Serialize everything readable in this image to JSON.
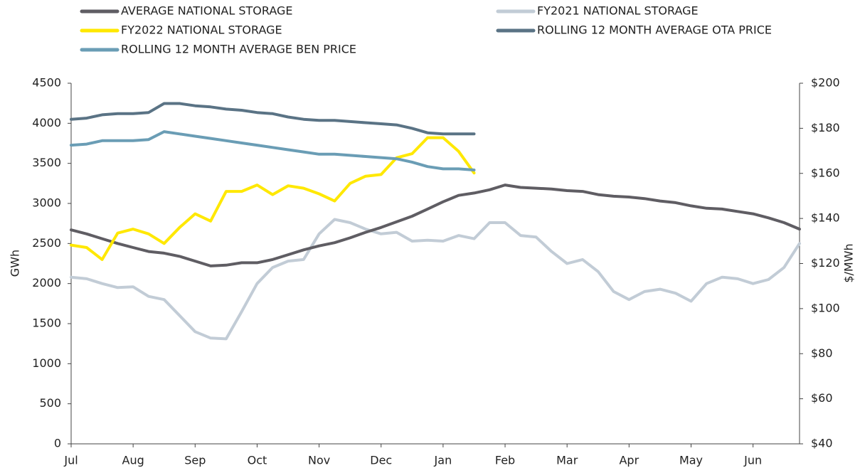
{
  "chart_data": {
    "type": "line",
    "x": [
      0,
      0.25,
      0.5,
      0.75,
      1,
      1.25,
      1.5,
      1.75,
      2,
      2.25,
      2.5,
      2.75,
      3,
      3.25,
      3.5,
      3.75,
      4,
      4.25,
      4.5,
      4.75,
      5,
      5.25,
      5.5,
      5.75,
      6,
      6.25,
      6.5,
      6.75,
      7,
      7.25,
      7.5,
      7.75,
      8,
      8.25,
      8.5,
      8.75,
      9,
      9.25,
      9.5,
      9.75,
      10,
      10.25,
      10.5,
      10.75,
      11,
      11.25,
      11.5,
      11.75
    ],
    "xlim": [
      0,
      11.75
    ],
    "xticks": [
      {
        "value": 0,
        "label": "Jul"
      },
      {
        "value": 1,
        "label": "Aug"
      },
      {
        "value": 2,
        "label": "Sep"
      },
      {
        "value": 3,
        "label": "Oct"
      },
      {
        "value": 4,
        "label": "Nov"
      },
      {
        "value": 5,
        "label": "Dec"
      },
      {
        "value": 6,
        "label": "Jan"
      },
      {
        "value": 7,
        "label": "Feb"
      },
      {
        "value": 8,
        "label": "Mar"
      },
      {
        "value": 9,
        "label": "Apr"
      },
      {
        "value": 10,
        "label": "May"
      },
      {
        "value": 11,
        "label": "Jun"
      }
    ],
    "ylabel": "GWh",
    "y2label": "$/MWh",
    "ylim": [
      0,
      4500
    ],
    "yticks": [
      0,
      500,
      1000,
      1500,
      2000,
      2500,
      3000,
      3500,
      4000,
      4500
    ],
    "y2lim": [
      40,
      200
    ],
    "y2ticks": [
      {
        "value": 40,
        "label": "$40"
      },
      {
        "value": 60,
        "label": "$60"
      },
      {
        "value": 80,
        "label": "$80"
      },
      {
        "value": 100,
        "label": "$100"
      },
      {
        "value": 120,
        "label": "$120"
      },
      {
        "value": 140,
        "label": "$140"
      },
      {
        "value": 160,
        "label": "$160"
      },
      {
        "value": 180,
        "label": "$180"
      },
      {
        "value": 200,
        "label": "$200"
      }
    ],
    "series": [
      {
        "name": "AVERAGE NATIONAL STORAGE",
        "color": "#5f5d63",
        "values": [
          2670,
          2620,
          2560,
          2500,
          2450,
          2400,
          2380,
          2340,
          2280,
          2220,
          2230,
          2260,
          2260,
          2300,
          2360,
          2420,
          2470,
          2510,
          2570,
          2640,
          2700,
          2770,
          2840,
          2930,
          3020,
          3100,
          3130,
          3170,
          3230,
          3200,
          3190,
          3180,
          3160,
          3150,
          3110,
          3090,
          3080,
          3060,
          3030,
          3010,
          2970,
          2940,
          2930,
          2900,
          2870,
          2820,
          2760,
          2680
        ]
      },
      {
        "name": "FY2021 NATIONAL STORAGE",
        "color": "#c2ccd6",
        "values": [
          2080,
          2060,
          2000,
          1950,
          1960,
          1840,
          1800,
          1600,
          1400,
          1320,
          1310,
          1650,
          2000,
          2200,
          2280,
          2300,
          2620,
          2800,
          2760,
          2680,
          2620,
          2640,
          2530,
          2540,
          2530,
          2600,
          2560,
          2760,
          2760,
          2600,
          2580,
          2400,
          2250,
          2300,
          2150,
          1900,
          1800,
          1900,
          1930,
          1880,
          1780,
          2000,
          2080,
          2060,
          2000,
          2050,
          2200,
          2500
        ]
      },
      {
        "name": "FY2022 NATIONAL STORAGE",
        "color": "#ffe800",
        "values": [
          2480,
          2450,
          2300,
          2630,
          2680,
          2620,
          2500,
          2700,
          2870,
          2780,
          3150,
          3150,
          3230,
          3110,
          3220,
          3190,
          3120,
          3030,
          3250,
          3340,
          3360,
          3570,
          3620,
          3820,
          3820,
          3650,
          3380,
          null,
          null,
          null,
          null,
          null,
          null,
          null,
          null,
          null,
          null,
          null,
          null,
          null,
          null,
          null,
          null,
          null,
          null,
          null,
          null,
          null
        ]
      },
      {
        "name": "ROLLING 12 MONTH AVERAGE OTA PRICE",
        "color": "#5a7385",
        "axis": "y2",
        "values": [
          184,
          184.5,
          186,
          186.5,
          186.5,
          187,
          191,
          191,
          190,
          189.5,
          188.5,
          188,
          187,
          186.5,
          185,
          184,
          183.5,
          183.5,
          183,
          182.5,
          182,
          181.5,
          180,
          178,
          177.5,
          177.5,
          177.5,
          null,
          null,
          null,
          null,
          null,
          null,
          null,
          null,
          null,
          null,
          null,
          null,
          null,
          null,
          null,
          null,
          null,
          null,
          null,
          null,
          null
        ]
      },
      {
        "name": "ROLLING 12 MONTH AVERAGE BEN PRICE",
        "color": "#6a9db5",
        "axis": "y2",
        "values": [
          172.5,
          173,
          174.5,
          174.5,
          174.5,
          175,
          178.5,
          177.5,
          176.5,
          175.5,
          174.5,
          173.5,
          172.5,
          171.5,
          170.5,
          169.5,
          168.5,
          168.5,
          168,
          167.5,
          167,
          166.5,
          165,
          163,
          162,
          162,
          161.5,
          null,
          null,
          null,
          null,
          null,
          null,
          null,
          null,
          null,
          null,
          null,
          null,
          null,
          null,
          null,
          null,
          null,
          null,
          null,
          null,
          null
        ]
      }
    ]
  }
}
